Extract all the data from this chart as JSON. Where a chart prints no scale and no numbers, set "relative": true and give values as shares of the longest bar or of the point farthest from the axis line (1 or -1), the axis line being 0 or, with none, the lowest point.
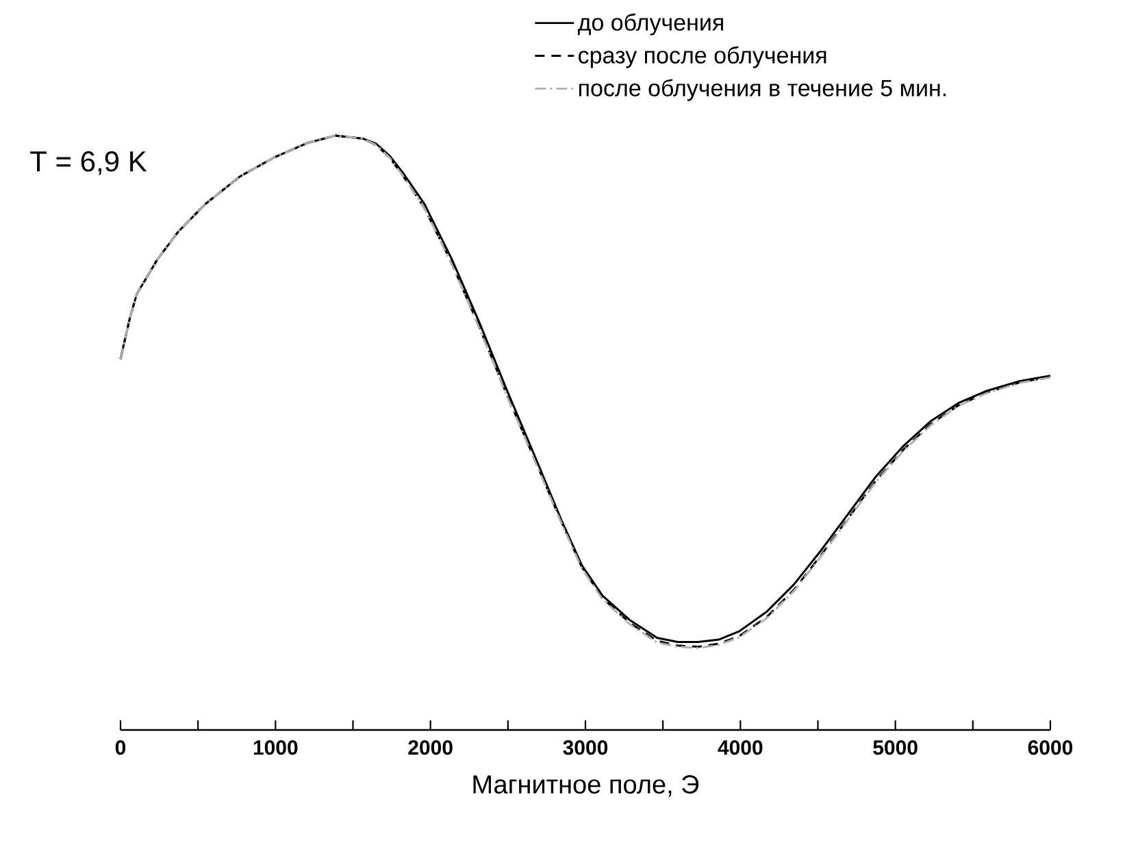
{
  "chart_data": {
    "type": "line",
    "relative": true,
    "xlabel": "Магнитное поле, Э",
    "annotations": [
      "T = 6,9 K"
    ],
    "xlim": [
      0,
      6000
    ],
    "xticks": [
      0,
      {
        "value": 500,
        "label": null
      },
      1000,
      {
        "value": 1500,
        "label": null
      },
      2000,
      {
        "value": 2500,
        "label": null
      },
      3000,
      {
        "value": 3500,
        "label": null
      },
      4000,
      {
        "value": 4500,
        "label": null
      },
      5000,
      {
        "value": 5500,
        "label": null
      },
      6000
    ],
    "x": [
      0,
      62,
      106,
      239,
      371,
      548,
      769,
      989,
      1210,
      1387,
      1564,
      1652,
      1740,
      1829,
      1961,
      2138,
      2315,
      2491,
      2668,
      2845,
      2977,
      3110,
      3286,
      3463,
      3595,
      3728,
      3860,
      3993,
      4170,
      4346,
      4523,
      4700,
      4876,
      5053,
      5230,
      5406,
      5583,
      5804,
      6000
    ],
    "legend": "top right",
    "series": [
      {
        "name": "до облучения",
        "color": "#000000",
        "line_style": "solid",
        "values": [
          0.624,
          0.695,
          0.734,
          0.792,
          0.838,
          0.885,
          0.931,
          0.963,
          0.988,
          1.0,
          0.995,
          0.986,
          0.965,
          0.935,
          0.885,
          0.792,
          0.686,
          0.573,
          0.464,
          0.353,
          0.277,
          0.226,
          0.185,
          0.155,
          0.148,
          0.148,
          0.152,
          0.166,
          0.199,
          0.245,
          0.303,
          0.365,
          0.427,
          0.478,
          0.52,
          0.55,
          0.57,
          0.587,
          0.596
        ]
      },
      {
        "name": "сразу после облучения",
        "color": "#000000",
        "line_style": "dashed",
        "values": [
          0.624,
          0.695,
          0.734,
          0.792,
          0.838,
          0.885,
          0.931,
          0.963,
          0.988,
          1.0,
          0.995,
          0.984,
          0.962,
          0.93,
          0.878,
          0.785,
          0.678,
          0.565,
          0.458,
          0.35,
          0.274,
          0.222,
          0.18,
          0.15,
          0.142,
          0.14,
          0.145,
          0.158,
          0.19,
          0.236,
          0.295,
          0.358,
          0.42,
          0.472,
          0.515,
          0.546,
          0.567,
          0.585,
          0.594
        ]
      },
      {
        "name": "после облучения в течение 5 мин.",
        "color": "#b0b0b0",
        "line_style": "dashdot",
        "values": [
          0.624,
          0.695,
          0.734,
          0.792,
          0.838,
          0.885,
          0.931,
          0.963,
          0.988,
          1.0,
          0.995,
          0.984,
          0.962,
          0.93,
          0.878,
          0.783,
          0.676,
          0.563,
          0.456,
          0.348,
          0.272,
          0.22,
          0.178,
          0.147,
          0.14,
          0.138,
          0.143,
          0.156,
          0.188,
          0.234,
          0.293,
          0.356,
          0.418,
          0.47,
          0.513,
          0.545,
          0.566,
          0.584,
          0.593
        ]
      }
    ]
  }
}
